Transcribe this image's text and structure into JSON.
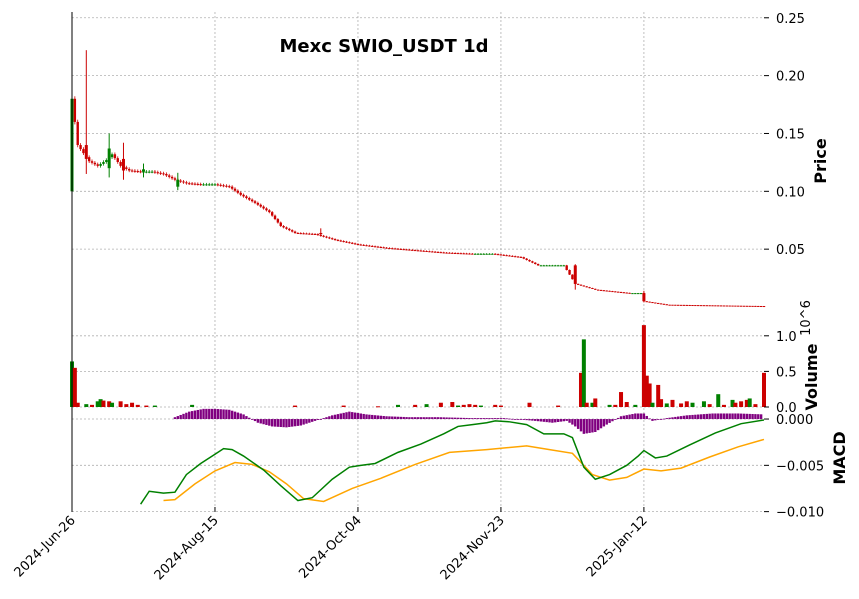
{
  "chart_data": {
    "type": "candlestick",
    "title": "Mexc SWIO_USDT 1d",
    "x_ticks": [
      "2024-Jun-26",
      "2024-Aug-15",
      "2024-Oct-04",
      "2024-Nov-23",
      "2025-Jan-12"
    ],
    "x_range": [
      "2024-06-26",
      "2025-02-23"
    ],
    "colors": {
      "up": "#008000",
      "down": "#cc0000",
      "macd": "#008000",
      "signal": "#ffa500",
      "hist": "#800080",
      "grid": "#b0b0b0"
    },
    "grid": true,
    "panels": {
      "price": {
        "ylabel": "Price",
        "ylim": [
          0.0,
          0.255
        ],
        "yticks": [
          0.05,
          0.1,
          0.15,
          0.2,
          0.25
        ],
        "ytick_labels": [
          "0.05",
          "0.10",
          "0.15",
          "0.20",
          "0.25"
        ],
        "close_series": [
          [
            "2024-06-26",
            0.18
          ],
          [
            "2024-06-28",
            0.14
          ],
          [
            "2024-06-30",
            0.133
          ],
          [
            "2024-07-02",
            0.126
          ],
          [
            "2024-07-05",
            0.122
          ],
          [
            "2024-07-08",
            0.127
          ],
          [
            "2024-07-10",
            0.132
          ],
          [
            "2024-07-13",
            0.122
          ],
          [
            "2024-07-16",
            0.118
          ],
          [
            "2024-07-20",
            0.117
          ],
          [
            "2024-07-24",
            0.117
          ],
          [
            "2024-07-28",
            0.115
          ],
          [
            "2024-08-01",
            0.11
          ],
          [
            "2024-08-05",
            0.107
          ],
          [
            "2024-08-10",
            0.106
          ],
          [
            "2024-08-15",
            0.106
          ],
          [
            "2024-08-20",
            0.104
          ],
          [
            "2024-08-24",
            0.097
          ],
          [
            "2024-08-29",
            0.09
          ],
          [
            "2024-09-03",
            0.082
          ],
          [
            "2024-09-07",
            0.07
          ],
          [
            "2024-09-12",
            0.064
          ],
          [
            "2024-09-19",
            0.063
          ],
          [
            "2024-09-26",
            0.058
          ],
          [
            "2024-10-04",
            0.054
          ],
          [
            "2024-10-14",
            0.051
          ],
          [
            "2024-10-24",
            0.049
          ],
          [
            "2024-11-03",
            0.047
          ],
          [
            "2024-11-13",
            0.046
          ],
          [
            "2024-11-20",
            0.046
          ],
          [
            "2024-11-30",
            0.043
          ],
          [
            "2024-12-06",
            0.036
          ],
          [
            "2024-12-15",
            0.036
          ],
          [
            "2024-12-19",
            0.02
          ],
          [
            "2024-12-26",
            0.015
          ],
          [
            "2025-01-07",
            0.012
          ],
          [
            "2025-01-11",
            0.012
          ],
          [
            "2025-01-12",
            0.005
          ],
          [
            "2025-01-20",
            0.002
          ],
          [
            "2025-02-23",
            0.0008
          ]
        ],
        "spikes": [
          {
            "date": "2024-06-26",
            "low": 0.1,
            "high": 0.255,
            "open": 0.1,
            "close": 0.18
          },
          {
            "date": "2024-07-01",
            "low": 0.115,
            "high": 0.222,
            "open": 0.14,
            "close": 0.128
          },
          {
            "date": "2024-07-09",
            "low": 0.112,
            "high": 0.15,
            "open": 0.12,
            "close": 0.137
          },
          {
            "date": "2024-07-14",
            "low": 0.11,
            "high": 0.142,
            "open": 0.128,
            "close": 0.118
          },
          {
            "date": "2024-07-21",
            "low": 0.112,
            "high": 0.124,
            "open": 0.117,
            "close": 0.119
          },
          {
            "date": "2024-08-02",
            "low": 0.101,
            "high": 0.116,
            "open": 0.104,
            "close": 0.11
          },
          {
            "date": "2024-09-21",
            "low": 0.061,
            "high": 0.068,
            "open": 0.064,
            "close": 0.063
          },
          {
            "date": "2024-12-19",
            "low": 0.015,
            "high": 0.037,
            "open": 0.036,
            "close": 0.02
          },
          {
            "date": "2025-01-12",
            "low": 0.004,
            "high": 0.014,
            "open": 0.012,
            "close": 0.005
          }
        ]
      },
      "volume": {
        "ylabel": "Volume",
        "ylabel_exponent": "10^6",
        "ylim": [
          0.0,
          1.25
        ],
        "yticks": [
          0.0,
          0.5,
          1.0
        ],
        "ytick_labels": [
          "0.0",
          "0.5",
          "1.0"
        ],
        "bars": [
          [
            "2024-06-26",
            0.64,
            "up"
          ],
          [
            "2024-06-27",
            0.55,
            "down"
          ],
          [
            "2024-06-28",
            0.06,
            "down"
          ],
          [
            "2024-07-01",
            0.04,
            "up"
          ],
          [
            "2024-07-03",
            0.03,
            "down"
          ],
          [
            "2024-07-05",
            0.08,
            "up"
          ],
          [
            "2024-07-06",
            0.11,
            "up"
          ],
          [
            "2024-07-07",
            0.09,
            "down"
          ],
          [
            "2024-07-09",
            0.08,
            "down"
          ],
          [
            "2024-07-10",
            0.06,
            "up"
          ],
          [
            "2024-07-13",
            0.08,
            "down"
          ],
          [
            "2024-07-15",
            0.04,
            "down"
          ],
          [
            "2024-07-17",
            0.06,
            "down"
          ],
          [
            "2024-07-19",
            0.03,
            "down"
          ],
          [
            "2024-07-22",
            0.02,
            "down"
          ],
          [
            "2024-07-25",
            0.02,
            "up"
          ],
          [
            "2024-08-07",
            0.03,
            "up"
          ],
          [
            "2024-09-12",
            0.02,
            "down"
          ],
          [
            "2024-09-29",
            0.02,
            "down"
          ],
          [
            "2024-10-11",
            0.01,
            "down"
          ],
          [
            "2024-10-18",
            0.03,
            "up"
          ],
          [
            "2024-10-24",
            0.03,
            "down"
          ],
          [
            "2024-10-28",
            0.04,
            "up"
          ],
          [
            "2024-11-02",
            0.06,
            "down"
          ],
          [
            "2024-11-06",
            0.07,
            "down"
          ],
          [
            "2024-11-08",
            0.02,
            "up"
          ],
          [
            "2024-11-10",
            0.03,
            "down"
          ],
          [
            "2024-11-12",
            0.04,
            "down"
          ],
          [
            "2024-11-14",
            0.03,
            "down"
          ],
          [
            "2024-11-16",
            0.02,
            "up"
          ],
          [
            "2024-11-21",
            0.03,
            "down"
          ],
          [
            "2024-11-23",
            0.02,
            "down"
          ],
          [
            "2024-12-03",
            0.06,
            "down"
          ],
          [
            "2024-12-13",
            0.02,
            "down"
          ],
          [
            "2024-12-21",
            0.48,
            "down"
          ],
          [
            "2024-12-22",
            0.95,
            "up"
          ],
          [
            "2024-12-23",
            0.06,
            "down"
          ],
          [
            "2024-12-25",
            0.06,
            "up"
          ],
          [
            "2024-12-26",
            0.12,
            "down"
          ],
          [
            "2024-12-31",
            0.03,
            "up"
          ],
          [
            "2025-01-02",
            0.03,
            "down"
          ],
          [
            "2025-01-04",
            0.21,
            "down"
          ],
          [
            "2025-01-06",
            0.07,
            "down"
          ],
          [
            "2025-01-09",
            0.03,
            "up"
          ],
          [
            "2025-01-12",
            1.15,
            "down"
          ],
          [
            "2025-01-13",
            0.44,
            "down"
          ],
          [
            "2025-01-14",
            0.33,
            "down"
          ],
          [
            "2025-01-15",
            0.06,
            "up"
          ],
          [
            "2025-01-17",
            0.31,
            "down"
          ],
          [
            "2025-01-18",
            0.11,
            "down"
          ],
          [
            "2025-01-20",
            0.05,
            "up"
          ],
          [
            "2025-01-22",
            0.1,
            "down"
          ],
          [
            "2025-01-25",
            0.05,
            "down"
          ],
          [
            "2025-01-27",
            0.08,
            "down"
          ],
          [
            "2025-01-29",
            0.06,
            "up"
          ],
          [
            "2025-02-02",
            0.08,
            "up"
          ],
          [
            "2025-02-04",
            0.04,
            "down"
          ],
          [
            "2025-02-07",
            0.18,
            "up"
          ],
          [
            "2025-02-09",
            0.03,
            "down"
          ],
          [
            "2025-02-12",
            0.1,
            "up"
          ],
          [
            "2025-02-13",
            0.06,
            "down"
          ],
          [
            "2025-02-15",
            0.08,
            "down"
          ],
          [
            "2025-02-17",
            0.1,
            "down"
          ],
          [
            "2025-02-18",
            0.12,
            "up"
          ],
          [
            "2025-02-20",
            0.04,
            "down"
          ],
          [
            "2025-02-23",
            0.48,
            "down"
          ]
        ]
      },
      "macd": {
        "ylabel": "MACD",
        "ylim": [
          -0.0095,
          0.0013
        ],
        "yticks": [
          -0.01,
          -0.005,
          0.0
        ],
        "ytick_labels": [
          "−0.010",
          "−0.005",
          "0.000"
        ],
        "macd_line": [
          [
            "2024-07-20",
            -0.0092
          ],
          [
            "2024-07-23",
            -0.0078
          ],
          [
            "2024-07-28",
            -0.008
          ],
          [
            "2024-08-01",
            -0.0079
          ],
          [
            "2024-08-05",
            -0.006
          ],
          [
            "2024-08-10",
            -0.0048
          ],
          [
            "2024-08-15",
            -0.0038
          ],
          [
            "2024-08-18",
            -0.0032
          ],
          [
            "2024-08-21",
            -0.0033
          ],
          [
            "2024-08-25",
            -0.004
          ],
          [
            "2024-09-01",
            -0.0055
          ],
          [
            "2024-09-07",
            -0.0072
          ],
          [
            "2024-09-13",
            -0.0088
          ],
          [
            "2024-09-18",
            -0.0085
          ],
          [
            "2024-09-25",
            -0.0065
          ],
          [
            "2024-10-01",
            -0.0052
          ],
          [
            "2024-10-05",
            -0.005
          ],
          [
            "2024-10-10",
            -0.0048
          ],
          [
            "2024-10-18",
            -0.0036
          ],
          [
            "2024-10-26",
            -0.0027
          ],
          [
            "2024-11-03",
            -0.0016
          ],
          [
            "2024-11-08",
            -0.0008
          ],
          [
            "2024-11-13",
            -0.0006
          ],
          [
            "2024-11-18",
            -0.0004
          ],
          [
            "2024-11-21",
            -0.0002
          ],
          [
            "2024-11-26",
            -0.0003
          ],
          [
            "2024-12-02",
            -0.0006
          ],
          [
            "2024-12-08",
            -0.0016
          ],
          [
            "2024-12-15",
            -0.0016
          ],
          [
            "2024-12-18",
            -0.002
          ],
          [
            "2024-12-22",
            -0.0052
          ],
          [
            "2024-12-26",
            -0.0065
          ],
          [
            "2024-12-31",
            -0.006
          ],
          [
            "2025-01-06",
            -0.005
          ],
          [
            "2025-01-10",
            -0.004
          ],
          [
            "2025-01-12",
            -0.0034
          ],
          [
            "2025-01-16",
            -0.0042
          ],
          [
            "2025-01-20",
            -0.004
          ],
          [
            "2025-01-28",
            -0.0028
          ],
          [
            "2025-02-06",
            -0.0015
          ],
          [
            "2025-02-15",
            -0.0005
          ],
          [
            "2025-02-23",
            -0.0001
          ]
        ],
        "signal_line": [
          [
            "2024-07-28",
            -0.0088
          ],
          [
            "2024-08-01",
            -0.0087
          ],
          [
            "2024-08-08",
            -0.007
          ],
          [
            "2024-08-15",
            -0.0056
          ],
          [
            "2024-08-22",
            -0.0047
          ],
          [
            "2024-08-28",
            -0.0049
          ],
          [
            "2024-09-03",
            -0.0057
          ],
          [
            "2024-09-09",
            -0.007
          ],
          [
            "2024-09-15",
            -0.0086
          ],
          [
            "2024-09-22",
            -0.0089
          ],
          [
            "2024-10-02",
            -0.0075
          ],
          [
            "2024-10-12",
            -0.0064
          ],
          [
            "2024-10-24",
            -0.0049
          ],
          [
            "2024-11-05",
            -0.0036
          ],
          [
            "2024-11-18",
            -0.0033
          ],
          [
            "2024-12-02",
            -0.0029
          ],
          [
            "2024-12-10",
            -0.0033
          ],
          [
            "2024-12-18",
            -0.0037
          ],
          [
            "2024-12-25",
            -0.006
          ],
          [
            "2024-12-31",
            -0.0066
          ],
          [
            "2025-01-06",
            -0.0063
          ],
          [
            "2025-01-12",
            -0.0054
          ],
          [
            "2025-01-18",
            -0.0056
          ],
          [
            "2025-01-25",
            -0.0053
          ],
          [
            "2025-02-04",
            -0.0041
          ],
          [
            "2025-02-14",
            -0.003
          ],
          [
            "2025-02-23",
            -0.0022
          ]
        ],
        "histogram": [
          [
            "2024-08-01",
            0.0002
          ],
          [
            "2024-08-06",
            0.0008
          ],
          [
            "2024-08-11",
            0.0011
          ],
          [
            "2024-08-15",
            0.0011
          ],
          [
            "2024-08-20",
            0.001
          ],
          [
            "2024-08-25",
            0.0005
          ],
          [
            "2024-08-30",
            -0.0004
          ],
          [
            "2024-09-04",
            -0.0008
          ],
          [
            "2024-09-09",
            -0.0009
          ],
          [
            "2024-09-14",
            -0.0007
          ],
          [
            "2024-09-19",
            -0.0002
          ],
          [
            "2024-09-25",
            0.0004
          ],
          [
            "2024-10-01",
            0.0008
          ],
          [
            "2024-10-07",
            0.0005
          ],
          [
            "2024-10-14",
            0.0003
          ],
          [
            "2024-10-22",
            0.0002
          ],
          [
            "2024-11-01",
            0.0002
          ],
          [
            "2024-11-13",
            0.0001
          ],
          [
            "2024-11-24",
            0.0001
          ],
          [
            "2024-12-05",
            -0.0002
          ],
          [
            "2024-12-11",
            -0.0004
          ],
          [
            "2024-12-16",
            -0.0002
          ],
          [
            "2024-12-19",
            -0.0008
          ],
          [
            "2024-12-22",
            -0.0016
          ],
          [
            "2024-12-26",
            -0.0014
          ],
          [
            "2024-12-30",
            -0.0006
          ],
          [
            "2025-01-04",
            0.0003
          ],
          [
            "2025-01-09",
            0.0006
          ],
          [
            "2025-01-12",
            0.0006
          ],
          [
            "2025-01-15",
            -0.0002
          ],
          [
            "2025-01-20",
            0.0001
          ],
          [
            "2025-01-27",
            0.0004
          ],
          [
            "2025-02-05",
            0.0006
          ],
          [
            "2025-02-14",
            0.0006
          ],
          [
            "2025-02-23",
            0.0005
          ]
        ]
      }
    }
  }
}
